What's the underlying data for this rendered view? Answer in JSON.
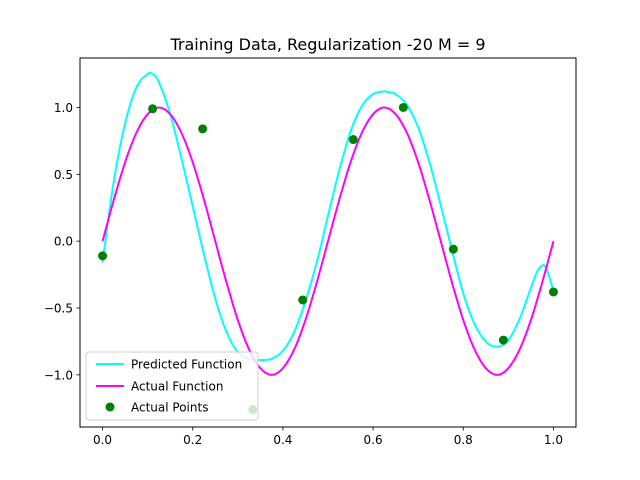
{
  "chart_data": {
    "type": "line",
    "title": "Training Data, Regularization -20 M = 9",
    "xlabel": "",
    "ylabel": "",
    "xlim": [
      -0.05,
      1.05
    ],
    "ylim": [
      -1.39,
      1.37
    ],
    "xticks": [
      0.0,
      0.2,
      0.4,
      0.6,
      0.8,
      1.0
    ],
    "xtick_labels": [
      "0.0",
      "0.2",
      "0.4",
      "0.6",
      "0.8",
      "1.0"
    ],
    "yticks": [
      -1.0,
      -0.5,
      0.0,
      0.5,
      1.0
    ],
    "ytick_labels": [
      "−1.0",
      "−0.5",
      "0.0",
      "0.5",
      "1.0"
    ],
    "grid": false,
    "legend_position": "lower-left",
    "series": [
      {
        "name": "Predicted Function",
        "kind": "line",
        "color": "#00ffff",
        "x": [
          0.0,
          0.025,
          0.05,
          0.075,
          0.1,
          0.111,
          0.125,
          0.15,
          0.175,
          0.2,
          0.225,
          0.25,
          0.275,
          0.3,
          0.325,
          0.35,
          0.375,
          0.4,
          0.425,
          0.45,
          0.475,
          0.5,
          0.525,
          0.55,
          0.575,
          0.6,
          0.625,
          0.64,
          0.65,
          0.675,
          0.7,
          0.725,
          0.75,
          0.775,
          0.8,
          0.825,
          0.85,
          0.875,
          0.9,
          0.925,
          0.95,
          0.965,
          0.98,
          0.99,
          1.0
        ],
        "y": [
          -0.16,
          0.45,
          0.88,
          1.15,
          1.25,
          1.25,
          1.19,
          0.95,
          0.62,
          0.26,
          -0.1,
          -0.43,
          -0.68,
          -0.83,
          -0.88,
          -0.89,
          -0.88,
          -0.82,
          -0.68,
          -0.45,
          -0.16,
          0.19,
          0.53,
          0.82,
          1.01,
          1.1,
          1.12,
          1.11,
          1.1,
          1.02,
          0.85,
          0.59,
          0.27,
          -0.07,
          -0.39,
          -0.62,
          -0.75,
          -0.79,
          -0.74,
          -0.58,
          -0.35,
          -0.22,
          -0.18,
          -0.26,
          -0.37
        ]
      },
      {
        "name": "Actual Function",
        "kind": "line",
        "color": "#ff00ff",
        "x": [
          0.0,
          0.025,
          0.05,
          0.075,
          0.1,
          0.125,
          0.15,
          0.175,
          0.2,
          0.225,
          0.25,
          0.275,
          0.3,
          0.325,
          0.35,
          0.375,
          0.4,
          0.425,
          0.45,
          0.475,
          0.5,
          0.525,
          0.55,
          0.575,
          0.6,
          0.625,
          0.65,
          0.675,
          0.7,
          0.725,
          0.75,
          0.775,
          0.8,
          0.825,
          0.85,
          0.875,
          0.9,
          0.925,
          0.95,
          0.975,
          1.0
        ],
        "y": [
          0.0,
          0.31,
          0.59,
          0.81,
          0.95,
          1.0,
          0.95,
          0.81,
          0.59,
          0.31,
          0.0,
          -0.31,
          -0.59,
          -0.81,
          -0.95,
          -1.0,
          -0.95,
          -0.81,
          -0.59,
          -0.31,
          0.0,
          0.31,
          0.59,
          0.81,
          0.95,
          1.0,
          0.95,
          0.81,
          0.59,
          0.31,
          0.0,
          -0.31,
          -0.59,
          -0.81,
          -0.95,
          -1.0,
          -0.95,
          -0.81,
          -0.59,
          -0.31,
          0.0
        ]
      },
      {
        "name": "Actual Points",
        "kind": "scatter",
        "color": "#008000",
        "x": [
          0.0,
          0.111,
          0.222,
          0.333,
          0.444,
          0.556,
          0.667,
          0.778,
          0.889,
          1.0
        ],
        "y": [
          -0.11,
          0.99,
          0.84,
          -1.26,
          -0.44,
          0.76,
          1.0,
          -0.06,
          -0.74,
          -0.38
        ]
      }
    ]
  }
}
